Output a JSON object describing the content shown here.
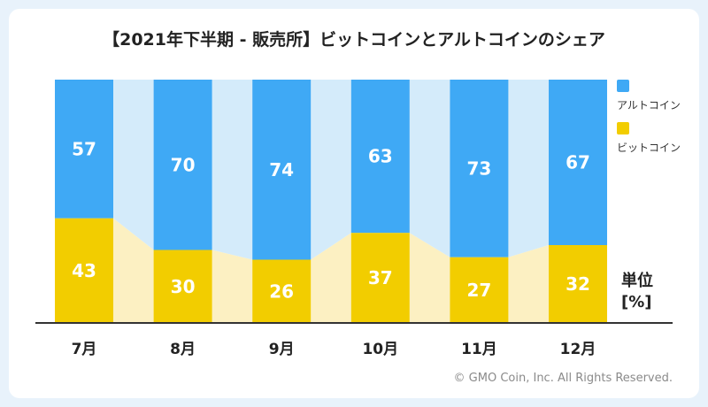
{
  "title": "【2021年下半期 - 販売所】ビットコインとアルトコインのシェア",
  "unit_line1": "単位",
  "unit_line2": "[%]",
  "copyright": "© GMO Coin, Inc. All Rights Reserved.",
  "colors": {
    "altcoin": "#3fa9f5",
    "altcoin_band": "#d4ebfa",
    "bitcoin": "#f2cd00",
    "bitcoin_band": "#fcf0c2",
    "axis": "#333333"
  },
  "legend": [
    {
      "label": "アルトコイン",
      "color": "#3fa9f5"
    },
    {
      "label": "ビットコイン",
      "color": "#f2cd00"
    }
  ],
  "chart_data": {
    "type": "bar",
    "stacked": true,
    "percent": true,
    "title": "【2021年下半期 - 販売所】ビットコインとアルトコインのシェア",
    "categories": [
      "7月",
      "8月",
      "9月",
      "10月",
      "11月",
      "12月"
    ],
    "series": [
      {
        "name": "ビットコイン",
        "values": [
          43,
          30,
          26,
          37,
          27,
          32
        ]
      },
      {
        "name": "アルトコイン",
        "values": [
          57,
          70,
          74,
          63,
          73,
          67
        ]
      }
    ],
    "ylim": [
      0,
      100
    ],
    "ylabel": "単位 [%]",
    "legend_position": "right"
  }
}
